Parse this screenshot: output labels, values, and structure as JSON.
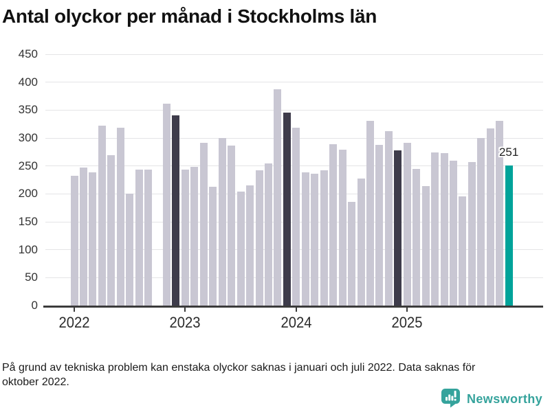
{
  "title": "Antal olyckor per månad i Stockholms län",
  "chart_data": {
    "type": "bar",
    "title": "Antal olyckor per månad i Stockholms län",
    "xlabel": "",
    "ylabel": "",
    "ylim": [
      0,
      450
    ],
    "grid": true,
    "months": [
      "2022-01",
      "2022-02",
      "2022-03",
      "2022-04",
      "2022-05",
      "2022-06",
      "2022-07",
      "2022-08",
      "2022-09",
      "2022-10",
      "2022-11",
      "2022-12",
      "2023-01",
      "2023-02",
      "2023-03",
      "2023-04",
      "2023-05",
      "2023-06",
      "2023-07",
      "2023-08",
      "2023-09",
      "2023-10",
      "2023-11",
      "2023-12",
      "2024-01",
      "2024-02",
      "2024-03",
      "2024-04",
      "2024-05",
      "2024-06",
      "2024-07",
      "2024-08",
      "2024-09",
      "2024-10",
      "2024-11",
      "2024-12",
      "2025-01",
      "2025-02",
      "2025-03",
      "2025-04",
      "2025-05",
      "2025-06",
      "2025-07",
      "2025-08",
      "2025-09",
      "2025-10",
      "2025-11",
      "2025-12"
    ],
    "values": [
      232,
      247,
      239,
      322,
      269,
      318,
      201,
      244,
      243,
      null,
      362,
      341,
      244,
      248,
      292,
      213,
      300,
      287,
      204,
      215,
      242,
      255,
      387,
      346,
      318,
      238,
      236,
      242,
      289,
      279,
      186,
      228,
      331,
      288,
      312,
      278,
      291,
      245,
      214,
      274,
      273,
      259,
      195,
      257,
      300,
      317,
      331,
      251
    ],
    "missing_month": "2022-10",
    "december_indices": [
      11,
      23,
      35
    ],
    "latest_index": 47,
    "annotation": {
      "month_index": 47,
      "label": "251"
    },
    "y_ticks": [
      0,
      50,
      100,
      150,
      200,
      250,
      300,
      350,
      400,
      450
    ],
    "x_ticks": [
      {
        "label": "2022",
        "month_index": 0
      },
      {
        "label": "2023",
        "month_index": 12
      },
      {
        "label": "2024",
        "month_index": 24
      },
      {
        "label": "2025",
        "month_index": 36
      }
    ]
  },
  "footnote": {
    "line1": "På grund av tekniska problem kan enstaka olyckor saknas i januari och juli 2022. Data saknas för",
    "line2": "oktober 2022."
  },
  "branding": {
    "name": "Newsworthy",
    "icon": "newsworthy-speech-bubble-bar-chart-icon"
  },
  "colors": {
    "bar_default": "#c9c7d3",
    "bar_december": "#3e3c4b",
    "bar_current": "#00a39a",
    "gridline": "#e4e4e6",
    "axis": "#3b3b3b",
    "axis_label_text": "#333333",
    "title_text": "#111111",
    "annotation_text": "#222222",
    "footnote_text": "#1a1a1a",
    "brand_teal": "#35a39c",
    "icon_marks": "#ffffff",
    "background": "#ffffff"
  }
}
